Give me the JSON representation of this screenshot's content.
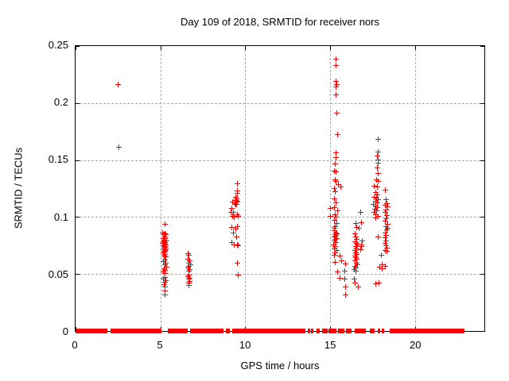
{
  "chart_data": {
    "type": "scatter",
    "title": "Day 109 of 2018, SRMTID for receiver nors",
    "xlabel": "GPS time / hours",
    "ylabel": "SRMTID / TECUs",
    "xlim": [
      0,
      24.1
    ],
    "ylim": [
      0,
      0.25
    ],
    "xticks": [
      0,
      5,
      10,
      15,
      20
    ],
    "xtick_labels": [
      "0",
      "5",
      "10",
      "15",
      "20"
    ],
    "yticks": [
      0,
      0.05,
      0.1,
      0.15,
      0.2,
      0.25
    ],
    "ytick_labels": [
      "0",
      "0.05",
      "0.1",
      "0.15",
      "0.2",
      "0.25"
    ],
    "grid": true,
    "legend": "none",
    "marker": "plus",
    "marker_color": "#ff0000",
    "baseline_segments": [
      [
        0.0,
        1.87
      ],
      [
        2.04,
        5.06
      ],
      [
        5.42,
        6.62
      ],
      [
        6.74,
        8.72
      ],
      [
        8.85,
        9.08
      ],
      [
        9.26,
        13.52
      ],
      [
        13.68,
        13.84
      ],
      [
        13.9,
        14.0
      ],
      [
        14.22,
        14.38
      ],
      [
        14.53,
        14.62
      ],
      [
        14.68,
        14.85
      ],
      [
        14.92,
        15.39
      ],
      [
        15.47,
        15.86
      ],
      [
        15.93,
        16.25
      ],
      [
        16.48,
        17.1
      ],
      [
        17.34,
        17.65
      ],
      [
        17.8,
        17.9
      ],
      [
        18.04,
        18.19
      ],
      [
        18.5,
        22.9
      ]
    ],
    "points": [
      [
        2.53,
        0.216
      ],
      [
        2.58,
        0.161
      ],
      [
        5.32,
        0.093
      ],
      [
        5.18,
        0.0855
      ],
      [
        5.3,
        0.085
      ],
      [
        5.24,
        0.0845
      ],
      [
        5.35,
        0.084
      ],
      [
        5.28,
        0.0825
      ],
      [
        5.2,
        0.081
      ],
      [
        5.32,
        0.0805
      ],
      [
        5.26,
        0.0795
      ],
      [
        5.38,
        0.079
      ],
      [
        5.22,
        0.078
      ],
      [
        5.3,
        0.0775
      ],
      [
        5.16,
        0.0765
      ],
      [
        5.28,
        0.076
      ],
      [
        5.35,
        0.0755
      ],
      [
        5.22,
        0.0745
      ],
      [
        5.3,
        0.074
      ],
      [
        5.25,
        0.073
      ],
      [
        5.33,
        0.0725
      ],
      [
        5.2,
        0.0715
      ],
      [
        5.28,
        0.071
      ],
      [
        5.35,
        0.0705
      ],
      [
        5.24,
        0.0695
      ],
      [
        5.3,
        0.069
      ],
      [
        5.22,
        0.068
      ],
      [
        5.32,
        0.067
      ],
      [
        5.26,
        0.0655
      ],
      [
        5.35,
        0.065
      ],
      [
        5.3,
        0.062
      ],
      [
        5.22,
        0.0605
      ],
      [
        5.35,
        0.059
      ],
      [
        5.28,
        0.0575
      ],
      [
        5.4,
        0.056
      ],
      [
        5.25,
        0.0545
      ],
      [
        5.32,
        0.053
      ],
      [
        5.2,
        0.0515
      ],
      [
        5.28,
        0.05
      ],
      [
        5.3,
        0.047
      ],
      [
        5.22,
        0.0455
      ],
      [
        5.35,
        0.044
      ],
      [
        5.28,
        0.0425
      ],
      [
        5.25,
        0.0405
      ],
      [
        5.32,
        0.038
      ],
      [
        5.28,
        0.0345
      ],
      [
        5.3,
        0.0315
      ],
      [
        6.65,
        0.0675
      ],
      [
        6.72,
        0.066
      ],
      [
        6.68,
        0.063
      ],
      [
        6.75,
        0.0615
      ],
      [
        6.7,
        0.0595
      ],
      [
        6.78,
        0.058
      ],
      [
        6.72,
        0.0565
      ],
      [
        6.68,
        0.055
      ],
      [
        6.75,
        0.0535
      ],
      [
        6.7,
        0.052
      ],
      [
        6.72,
        0.049
      ],
      [
        6.68,
        0.0475
      ],
      [
        6.76,
        0.046
      ],
      [
        6.7,
        0.0455
      ],
      [
        6.74,
        0.0435
      ],
      [
        6.7,
        0.042
      ],
      [
        6.72,
        0.0395
      ],
      [
        9.58,
        0.1285
      ],
      [
        9.55,
        0.1225
      ],
      [
        9.55,
        0.1205
      ],
      [
        9.48,
        0.117
      ],
      [
        9.52,
        0.1155
      ],
      [
        9.45,
        0.114
      ],
      [
        9.55,
        0.1135
      ],
      [
        9.5,
        0.1125
      ],
      [
        9.42,
        0.1115
      ],
      [
        9.52,
        0.111
      ],
      [
        9.46,
        0.1105
      ],
      [
        9.3,
        0.113
      ],
      [
        9.25,
        0.1075
      ],
      [
        9.35,
        0.104
      ],
      [
        9.2,
        0.1035
      ],
      [
        9.55,
        0.1015
      ],
      [
        9.3,
        0.1
      ],
      [
        9.62,
        0.1005
      ],
      [
        9.38,
        0.0995
      ],
      [
        9.25,
        0.0905
      ],
      [
        9.45,
        0.089
      ],
      [
        9.58,
        0.091
      ],
      [
        9.35,
        0.0855
      ],
      [
        9.5,
        0.082
      ],
      [
        9.25,
        0.077
      ],
      [
        9.4,
        0.0755
      ],
      [
        9.55,
        0.075
      ],
      [
        9.62,
        0.0745
      ],
      [
        9.55,
        0.059
      ],
      [
        9.6,
        0.049
      ],
      [
        15.36,
        0.2385
      ],
      [
        15.36,
        0.2325
      ],
      [
        15.4,
        0.2185
      ],
      [
        15.42,
        0.216
      ],
      [
        15.4,
        0.2135
      ],
      [
        15.36,
        0.207
      ],
      [
        15.42,
        0.1905
      ],
      [
        15.47,
        0.172
      ],
      [
        15.4,
        0.156
      ],
      [
        15.36,
        0.152
      ],
      [
        15.32,
        0.1465
      ],
      [
        15.27,
        0.14
      ],
      [
        15.4,
        0.1395
      ],
      [
        15.32,
        0.1325
      ],
      [
        15.4,
        0.131
      ],
      [
        15.52,
        0.128
      ],
      [
        15.67,
        0.126
      ],
      [
        15.07,
        0.107
      ],
      [
        15.07,
        0.1005
      ],
      [
        15.3,
        0.125
      ],
      [
        15.35,
        0.122
      ],
      [
        15.28,
        0.1155
      ],
      [
        15.38,
        0.112
      ],
      [
        15.3,
        0.108
      ],
      [
        15.45,
        0.105
      ],
      [
        15.33,
        0.102
      ],
      [
        15.38,
        0.0995
      ],
      [
        15.3,
        0.097
      ],
      [
        15.42,
        0.094
      ],
      [
        15.35,
        0.091
      ],
      [
        15.3,
        0.0895
      ],
      [
        15.28,
        0.0875
      ],
      [
        15.36,
        0.086
      ],
      [
        15.42,
        0.085
      ],
      [
        15.33,
        0.084
      ],
      [
        15.38,
        0.083
      ],
      [
        15.3,
        0.082
      ],
      [
        15.44,
        0.081
      ],
      [
        15.35,
        0.08
      ],
      [
        15.3,
        0.0785
      ],
      [
        15.4,
        0.077
      ],
      [
        15.25,
        0.0755
      ],
      [
        15.35,
        0.074
      ],
      [
        15.3,
        0.072
      ],
      [
        15.42,
        0.0705
      ],
      [
        15.35,
        0.0685
      ],
      [
        15.3,
        0.066
      ],
      [
        15.62,
        0.0655
      ],
      [
        15.32,
        0.06
      ],
      [
        15.72,
        0.061
      ],
      [
        15.95,
        0.0585
      ],
      [
        15.47,
        0.0515
      ],
      [
        15.9,
        0.052
      ],
      [
        15.62,
        0.046
      ],
      [
        15.9,
        0.045
      ],
      [
        15.95,
        0.0385
      ],
      [
        15.95,
        0.0315
      ],
      [
        16.55,
        0.094
      ],
      [
        16.6,
        0.0905
      ],
      [
        16.72,
        0.0895
      ],
      [
        16.5,
        0.085
      ],
      [
        16.55,
        0.082
      ],
      [
        16.6,
        0.08
      ],
      [
        16.5,
        0.078
      ],
      [
        16.58,
        0.0765
      ],
      [
        16.65,
        0.075
      ],
      [
        16.55,
        0.0735
      ],
      [
        16.6,
        0.072
      ],
      [
        16.5,
        0.07
      ],
      [
        16.55,
        0.0685
      ],
      [
        16.62,
        0.067
      ],
      [
        16.5,
        0.0655
      ],
      [
        16.55,
        0.064
      ],
      [
        16.6,
        0.0625
      ],
      [
        16.52,
        0.061
      ],
      [
        16.58,
        0.0595
      ],
      [
        16.65,
        0.058
      ],
      [
        16.5,
        0.0565
      ],
      [
        16.55,
        0.055
      ],
      [
        16.48,
        0.0535
      ],
      [
        16.55,
        0.052
      ],
      [
        16.45,
        0.045
      ],
      [
        16.52,
        0.0415
      ],
      [
        16.68,
        0.038
      ],
      [
        16.85,
        0.104
      ],
      [
        16.9,
        0.0945
      ],
      [
        16.92,
        0.0785
      ],
      [
        16.9,
        0.075
      ],
      [
        16.88,
        0.0735
      ],
      [
        16.85,
        0.071
      ],
      [
        17.85,
        0.168
      ],
      [
        17.85,
        0.157
      ],
      [
        17.8,
        0.153
      ],
      [
        17.85,
        0.15
      ],
      [
        17.85,
        0.147
      ],
      [
        17.8,
        0.143
      ],
      [
        17.85,
        0.138
      ],
      [
        17.75,
        0.1325
      ],
      [
        17.85,
        0.131
      ],
      [
        17.65,
        0.127
      ],
      [
        17.8,
        0.126
      ],
      [
        17.7,
        0.121
      ],
      [
        17.8,
        0.119
      ],
      [
        17.65,
        0.117
      ],
      [
        17.75,
        0.116
      ],
      [
        17.85,
        0.115
      ],
      [
        17.7,
        0.1135
      ],
      [
        17.8,
        0.112
      ],
      [
        17.6,
        0.1105
      ],
      [
        17.72,
        0.109
      ],
      [
        17.82,
        0.108
      ],
      [
        17.68,
        0.1065
      ],
      [
        17.78,
        0.105
      ],
      [
        17.62,
        0.1035
      ],
      [
        17.72,
        0.102
      ],
      [
        17.85,
        0.1005
      ],
      [
        17.7,
        0.099
      ],
      [
        18.3,
        0.1235
      ],
      [
        18.35,
        0.115
      ],
      [
        18.4,
        0.1115
      ],
      [
        18.3,
        0.11
      ],
      [
        18.45,
        0.1085
      ],
      [
        18.35,
        0.106
      ],
      [
        18.3,
        0.1035
      ],
      [
        18.4,
        0.101
      ],
      [
        18.35,
        0.0985
      ],
      [
        18.3,
        0.096
      ],
      [
        18.42,
        0.0935
      ],
      [
        18.35,
        0.0915
      ],
      [
        18.45,
        0.09
      ],
      [
        18.38,
        0.0885
      ],
      [
        18.3,
        0.086
      ],
      [
        18.35,
        0.0835
      ],
      [
        18.28,
        0.0815
      ],
      [
        18.35,
        0.079
      ],
      [
        18.3,
        0.0765
      ],
      [
        18.35,
        0.0745
      ],
      [
        18.4,
        0.0725
      ],
      [
        18.3,
        0.0705
      ],
      [
        18.38,
        0.0695
      ],
      [
        17.85,
        0.082
      ],
      [
        18.05,
        0.066
      ],
      [
        18.1,
        0.058
      ],
      [
        18.3,
        0.0565
      ],
      [
        17.95,
        0.0555
      ],
      [
        18.1,
        0.0545
      ],
      [
        17.9,
        0.0415
      ],
      [
        17.72,
        0.041
      ]
    ]
  }
}
